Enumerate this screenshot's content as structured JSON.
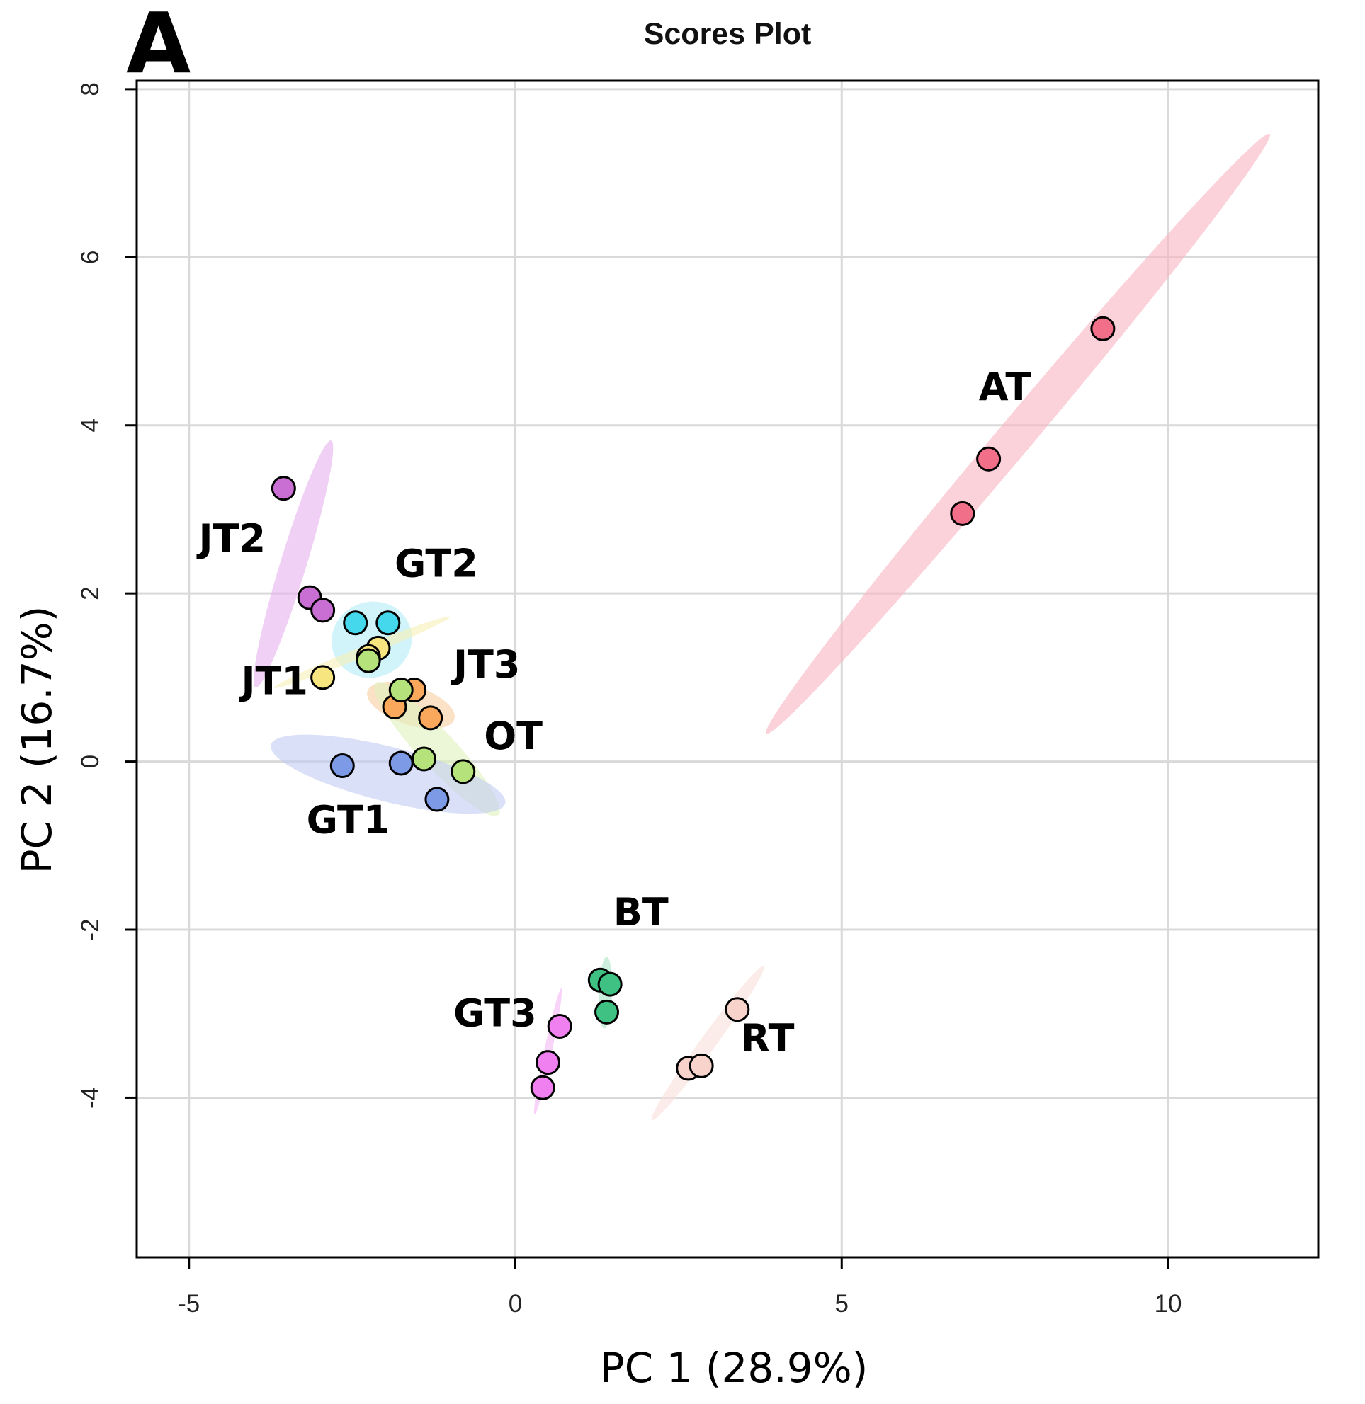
{
  "chart_data": {
    "type": "scatter",
    "panel_label": "A",
    "title": "Scores Plot",
    "xlabel": "PC 1 (28.9%)",
    "ylabel": "PC 2 (16.7%)",
    "xlim": [
      -5.8,
      12.3
    ],
    "ylim": [
      -5.9,
      8.1
    ],
    "xticks": [
      -5,
      0,
      5,
      10
    ],
    "yticks": [
      -4,
      -2,
      0,
      2,
      4,
      6,
      8
    ],
    "grid": true,
    "legend": "none",
    "series": [
      {
        "name": "AT",
        "color": "#f26f8a",
        "ellipse_color": "#f9b3c2",
        "points": [
          [
            9.0,
            5.15
          ],
          [
            7.25,
            3.6
          ],
          [
            6.85,
            2.95
          ]
        ],
        "ellipse": {
          "cx": 7.7,
          "cy": 3.9,
          "a": 6.0,
          "b": 0.27,
          "angle": 50
        }
      },
      {
        "name": "JT2",
        "color": "#c96fd3",
        "ellipse_color": "#e6b3ee",
        "points": [
          [
            -3.55,
            3.25
          ],
          [
            -3.15,
            1.95
          ],
          [
            -2.95,
            1.8
          ]
        ],
        "ellipse": {
          "cx": -3.4,
          "cy": 2.35,
          "a": 1.98,
          "b": 0.2,
          "angle": 73
        }
      },
      {
        "name": "GT2",
        "color": "#45d8ec",
        "ellipse_color": "#b2ecf6",
        "points": [
          [
            -2.45,
            1.65
          ],
          [
            -1.95,
            1.65
          ]
        ],
        "ellipse": {
          "cx": -2.2,
          "cy": 1.45,
          "a": 0.62,
          "b": 0.58,
          "angle": 20
        }
      },
      {
        "name": "JT1",
        "color": "#f7e67f",
        "ellipse_color": "#f7f0b5",
        "points": [
          [
            -2.95,
            1.0
          ],
          [
            -2.1,
            1.35
          ],
          [
            -2.25,
            1.25
          ]
        ],
        "ellipse": {
          "cx": -2.35,
          "cy": 1.3,
          "a": 1.45,
          "b": 0.08,
          "angle": 22
        }
      },
      {
        "name": "JT3",
        "color": "#f9a85c",
        "ellipse_color": "#f8cda0",
        "points": [
          [
            -1.55,
            0.85
          ],
          [
            -1.85,
            0.65
          ],
          [
            -1.3,
            0.52
          ]
        ],
        "ellipse": {
          "cx": -1.6,
          "cy": 0.67,
          "a": 0.7,
          "b": 0.3,
          "angle": -18
        }
      },
      {
        "name": "OT",
        "color": "#b5e27a",
        "ellipse_color": "#dff1bd",
        "points": [
          [
            -1.75,
            0.85
          ],
          [
            -2.25,
            1.2
          ],
          [
            -1.4,
            0.03
          ],
          [
            -0.8,
            -0.12
          ]
        ],
        "ellipse": {
          "cx": -1.2,
          "cy": 0.15,
          "a": 1.38,
          "b": 0.28,
          "angle": -47
        }
      },
      {
        "name": "GT1",
        "color": "#7d9ae6",
        "ellipse_color": "#c1ccf2",
        "points": [
          [
            -2.65,
            -0.05
          ],
          [
            -1.75,
            -0.02
          ],
          [
            -1.2,
            -0.45
          ]
        ],
        "ellipse": {
          "cx": -1.95,
          "cy": -0.15,
          "a": 1.85,
          "b": 0.42,
          "angle": -14
        }
      },
      {
        "name": "BT",
        "color": "#3ec182",
        "ellipse_color": "#a8e5c5",
        "points": [
          [
            1.3,
            -2.6
          ],
          [
            1.45,
            -2.65
          ],
          [
            1.4,
            -2.98
          ]
        ],
        "ellipse": {
          "cx": 1.38,
          "cy": -2.75,
          "a": 0.55,
          "b": 0.1,
          "angle": 88
        }
      },
      {
        "name": "GT3",
        "color": "#f080f0",
        "ellipse_color": "#f5b8f5",
        "points": [
          [
            0.68,
            -3.15
          ],
          [
            0.5,
            -3.58
          ],
          [
            0.42,
            -3.88
          ]
        ],
        "ellipse": {
          "cx": 0.5,
          "cy": -3.45,
          "a": 0.99,
          "b": 0.06,
          "angle": 78
        }
      },
      {
        "name": "RT",
        "color": "#f8d3cb",
        "ellipse_color": "#fae0da",
        "points": [
          [
            3.4,
            -2.95
          ],
          [
            2.65,
            -3.65
          ],
          [
            2.85,
            -3.62
          ]
        ],
        "ellipse": {
          "cx": 2.95,
          "cy": -3.35,
          "a": 1.46,
          "b": 0.12,
          "angle": 54
        }
      }
    ],
    "annotations": [
      {
        "text": "AT",
        "x": 7.1,
        "y": 4.3
      },
      {
        "text": "JT2",
        "x": -4.85,
        "y": 2.5
      },
      {
        "text": "GT2",
        "x": -1.85,
        "y": 2.2
      },
      {
        "text": "JT1",
        "x": -4.2,
        "y": 0.8
      },
      {
        "text": "JT3",
        "x": -0.95,
        "y": 1.0
      },
      {
        "text": "OT",
        "x": -0.48,
        "y": 0.15
      },
      {
        "text": "GT1",
        "x": -3.2,
        "y": -0.85
      },
      {
        "text": "BT",
        "x": 1.5,
        "y": -1.95
      },
      {
        "text": "GT3",
        "x": -0.95,
        "y": -3.15
      },
      {
        "text": "RT",
        "x": 3.45,
        "y": -3.45
      }
    ]
  }
}
